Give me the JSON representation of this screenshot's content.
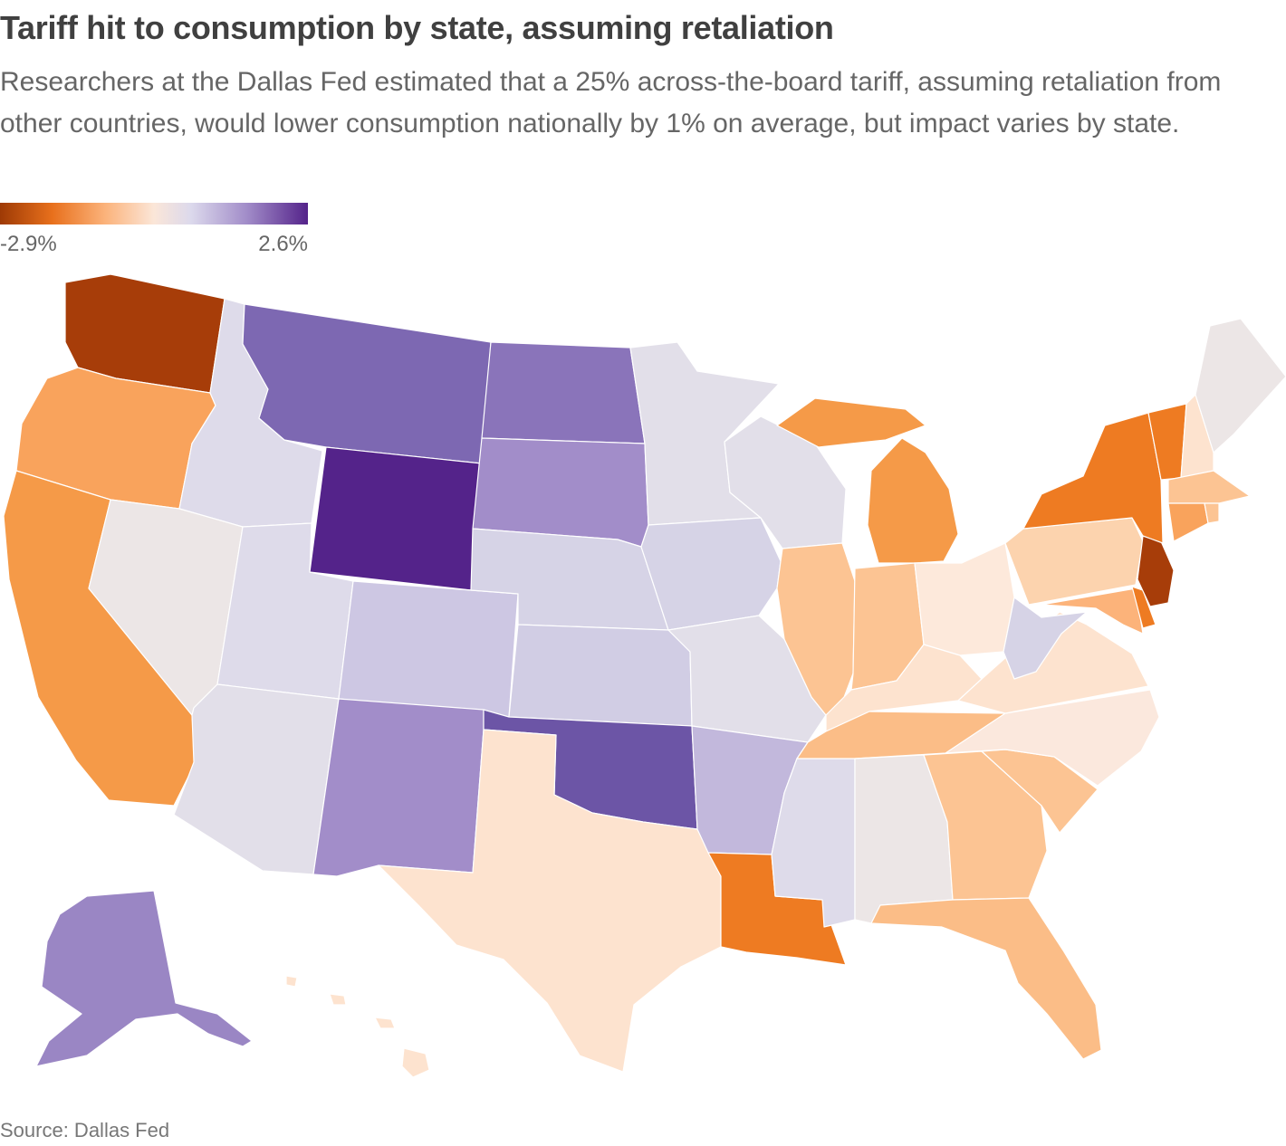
{
  "header": {
    "title": "Tariff hit to consumption by state, assuming retaliation",
    "subtitle": "Researchers at the Dallas Fed estimated that a 25% across-the-board tariff, assuming retaliation from other countries, would lower consumption nationally by 1% on average, but impact varies by state."
  },
  "legend": {
    "min_label": "-2.9%",
    "max_label": "2.6%"
  },
  "colors": {
    "strong_negative": "#a73d09",
    "negative": "#ee7b22",
    "moderate_negative": "#f9a35c",
    "light_negative": "#fcc493",
    "faint_negative": "#fde3cf",
    "neutral": "#ece6e6",
    "light_positive": "#dedbea",
    "moderate_positive": "#a28dc9",
    "strong_positive": "#54238a"
  },
  "map": {
    "states": [
      {
        "name": "Washington",
        "color": "#a73d09"
      },
      {
        "name": "Oregon",
        "color": "#f9a35c"
      },
      {
        "name": "California",
        "color": "#f59a48"
      },
      {
        "name": "Idaho",
        "color": "#dedbea"
      },
      {
        "name": "Nevada",
        "color": "#ece6e6"
      },
      {
        "name": "Utah",
        "color": "#dedbea"
      },
      {
        "name": "Arizona",
        "color": "#e2dfe9"
      },
      {
        "name": "Montana",
        "color": "#7d68b2"
      },
      {
        "name": "Wyoming",
        "color": "#54238a"
      },
      {
        "name": "Colorado",
        "color": "#cdc7e3"
      },
      {
        "name": "New Mexico",
        "color": "#a28dc9"
      },
      {
        "name": "North Dakota",
        "color": "#8a74ba"
      },
      {
        "name": "South Dakota",
        "color": "#a28dc9"
      },
      {
        "name": "Nebraska",
        "color": "#d6d3e6"
      },
      {
        "name": "Kansas",
        "color": "#d1cde4"
      },
      {
        "name": "Oklahoma",
        "color": "#6c55a6"
      },
      {
        "name": "Texas",
        "color": "#fde3cf"
      },
      {
        "name": "Minnesota",
        "color": "#e2dfe9"
      },
      {
        "name": "Iowa",
        "color": "#d6d3e6"
      },
      {
        "name": "Missouri",
        "color": "#e2dfe9"
      },
      {
        "name": "Arkansas",
        "color": "#c2b8dc"
      },
      {
        "name": "Louisiana",
        "color": "#ee7b22"
      },
      {
        "name": "Wisconsin",
        "color": "#e2dfe9"
      },
      {
        "name": "Illinois",
        "color": "#fcc493"
      },
      {
        "name": "Mississippi",
        "color": "#dedbea"
      },
      {
        "name": "Michigan",
        "color": "#f59a48"
      },
      {
        "name": "Indiana",
        "color": "#fcc493"
      },
      {
        "name": "Kentucky",
        "color": "#fde3cf"
      },
      {
        "name": "Tennessee",
        "color": "#fbbd87"
      },
      {
        "name": "Alabama",
        "color": "#ece6e6"
      },
      {
        "name": "Ohio",
        "color": "#fde9db"
      },
      {
        "name": "Georgia",
        "color": "#fcc493"
      },
      {
        "name": "Florida",
        "color": "#fbbd87"
      },
      {
        "name": "South Carolina",
        "color": "#fcc493"
      },
      {
        "name": "North Carolina",
        "color": "#fbe8dd"
      },
      {
        "name": "Virginia",
        "color": "#fde3cf"
      },
      {
        "name": "West Virginia",
        "color": "#d6d3e6"
      },
      {
        "name": "Pennsylvania",
        "color": "#fcd3ae"
      },
      {
        "name": "New York",
        "color": "#ee7b22"
      },
      {
        "name": "Vermont",
        "color": "#ee7b22"
      },
      {
        "name": "New Hampshire",
        "color": "#fde3cf"
      },
      {
        "name": "Maine",
        "color": "#ece6e6"
      },
      {
        "name": "Massachusetts",
        "color": "#fcc493"
      },
      {
        "name": "Connecticut",
        "color": "#f9a35c"
      },
      {
        "name": "Rhode Island",
        "color": "#fcc493"
      },
      {
        "name": "New Jersey",
        "color": "#a73d09"
      },
      {
        "name": "Delaware",
        "color": "#ee7b22"
      },
      {
        "name": "Maryland",
        "color": "#fcb37a"
      },
      {
        "name": "Alaska",
        "color": "#9a86c4"
      },
      {
        "name": "Hawaii",
        "color": "#fde3cf"
      }
    ]
  },
  "source": "Source: Dallas Fed"
}
